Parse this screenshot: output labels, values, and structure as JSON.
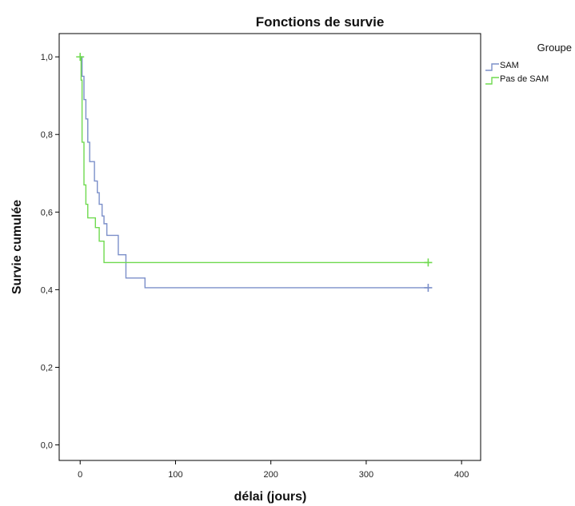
{
  "chart_data": {
    "type": "line",
    "step": true,
    "title": "Fonctions de survie",
    "xlabel": "délai (jours)",
    "ylabel": "Survie cumulée",
    "xlim": [
      -22,
      420
    ],
    "ylim": [
      -0.04,
      1.06
    ],
    "xticks": [
      0,
      100,
      200,
      300,
      400
    ],
    "xtick_labels": [
      "0",
      "100",
      "200",
      "300",
      "400"
    ],
    "yticks": [
      0.0,
      0.2,
      0.4,
      0.6,
      0.8,
      1.0
    ],
    "ytick_labels": [
      "0,0",
      "0,2",
      "0,4",
      "0,6",
      "0,8",
      "1,0"
    ],
    "grid": false,
    "legend": {
      "title": "Groupe",
      "placement": "top-right"
    },
    "series": [
      {
        "name": "SAM",
        "color": "#7b8fc9",
        "x": [
          0,
          2,
          4,
          6,
          8,
          10,
          12,
          15,
          18,
          20,
          23,
          25,
          28,
          33,
          40,
          48,
          68,
          365
        ],
        "y": [
          1.0,
          0.95,
          0.89,
          0.84,
          0.78,
          0.73,
          0.73,
          0.68,
          0.65,
          0.62,
          0.59,
          0.57,
          0.54,
          0.54,
          0.49,
          0.43,
          0.405,
          0.405
        ],
        "censored": [
          {
            "x": 365,
            "y": 0.405
          }
        ]
      },
      {
        "name": "Pas de SAM",
        "color": "#6fda4f",
        "x": [
          0,
          1,
          2,
          4,
          6,
          8,
          16,
          20,
          25,
          365
        ],
        "y": [
          1.0,
          0.94,
          0.78,
          0.67,
          0.62,
          0.585,
          0.56,
          0.525,
          0.47,
          0.47
        ],
        "censored": [
          {
            "x": 365,
            "y": 0.47
          },
          {
            "x": 0,
            "y": 1.0
          }
        ]
      }
    ]
  }
}
